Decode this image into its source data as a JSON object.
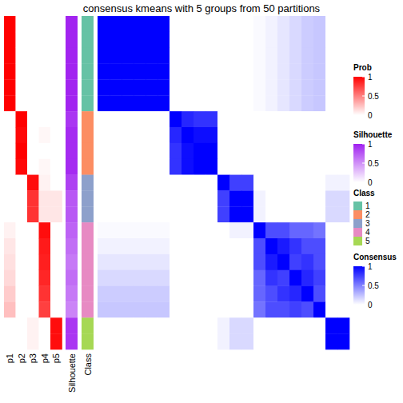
{
  "chart_data": {
    "type": "heatmap",
    "title": "consensus kmeans with 5 groups from 50 partitions",
    "consensus": [
      [
        1,
        1,
        1,
        1,
        1,
        1,
        0,
        0,
        0,
        0,
        0,
        0,
        0,
        0.02,
        0.05,
        0.1,
        0.15,
        0.2,
        0.22,
        0,
        0
      ],
      [
        1,
        1,
        1,
        1,
        1,
        1,
        0,
        0,
        0,
        0,
        0,
        0,
        0,
        0.02,
        0.05,
        0.1,
        0.15,
        0.2,
        0.22,
        0,
        0
      ],
      [
        1,
        1,
        1,
        1,
        1,
        1,
        0,
        0,
        0,
        0,
        0,
        0,
        0,
        0.02,
        0.05,
        0.1,
        0.15,
        0.2,
        0.22,
        0,
        0
      ],
      [
        1,
        1,
        1,
        1,
        1,
        1,
        0,
        0,
        0,
        0,
        0,
        0,
        0,
        0.02,
        0.05,
        0.1,
        0.15,
        0.2,
        0.22,
        0,
        0
      ],
      [
        1,
        1,
        1,
        1,
        1,
        1,
        0,
        0,
        0,
        0,
        0,
        0,
        0,
        0.02,
        0.05,
        0.1,
        0.15,
        0.2,
        0.22,
        0,
        0
      ],
      [
        1,
        1,
        1,
        1,
        1,
        1,
        0,
        0,
        0,
        0,
        0,
        0,
        0,
        0.02,
        0.05,
        0.1,
        0.15,
        0.2,
        0.22,
        0,
        0
      ],
      [
        0,
        0,
        0,
        0,
        0,
        0,
        1,
        0.85,
        0.8,
        0.8,
        0,
        0,
        0,
        0,
        0,
        0,
        0,
        0,
        0,
        0,
        0
      ],
      [
        0,
        0,
        0,
        0,
        0,
        0,
        0.85,
        1,
        0.95,
        0.95,
        0,
        0,
        0,
        0,
        0,
        0,
        0,
        0,
        0,
        0,
        0
      ],
      [
        0,
        0,
        0,
        0,
        0,
        0,
        0.8,
        0.95,
        1,
        1,
        0,
        0,
        0,
        0,
        0,
        0,
        0,
        0,
        0,
        0,
        0
      ],
      [
        0,
        0,
        0,
        0,
        0,
        0,
        0.8,
        0.95,
        1,
        1,
        0,
        0,
        0,
        0,
        0,
        0,
        0,
        0,
        0,
        0,
        0
      ],
      [
        0,
        0,
        0,
        0,
        0,
        0,
        0,
        0,
        0,
        0,
        1,
        0.75,
        0.75,
        0,
        0,
        0,
        0,
        0,
        0,
        0.05,
        0.05
      ],
      [
        0,
        0,
        0,
        0,
        0,
        0,
        0,
        0,
        0,
        0,
        0.75,
        1,
        1,
        0.05,
        0,
        0,
        0,
        0,
        0,
        0.15,
        0.15
      ],
      [
        0,
        0,
        0,
        0,
        0,
        0,
        0,
        0,
        0,
        0,
        0.75,
        1,
        1,
        0.05,
        0,
        0,
        0,
        0,
        0,
        0.15,
        0.15
      ],
      [
        0.02,
        0.02,
        0.02,
        0.02,
        0.02,
        0.02,
        0,
        0,
        0,
        0,
        0,
        0.05,
        0.05,
        1,
        0.7,
        0.7,
        0.6,
        0.6,
        0.55,
        0,
        0
      ],
      [
        0.05,
        0.05,
        0.05,
        0.05,
        0.05,
        0.05,
        0,
        0,
        0,
        0,
        0,
        0,
        0,
        0.7,
        1,
        0.9,
        0.8,
        0.7,
        0.7,
        0,
        0
      ],
      [
        0.1,
        0.1,
        0.1,
        0.1,
        0.1,
        0.1,
        0,
        0,
        0,
        0,
        0,
        0,
        0,
        0.7,
        0.9,
        1,
        0.75,
        0.8,
        0.7,
        0,
        0
      ],
      [
        0.15,
        0.15,
        0.15,
        0.15,
        0.15,
        0.15,
        0,
        0,
        0,
        0,
        0,
        0,
        0,
        0.6,
        0.8,
        0.75,
        1,
        0.85,
        0.75,
        0,
        0
      ],
      [
        0.2,
        0.2,
        0.2,
        0.2,
        0.2,
        0.2,
        0,
        0,
        0,
        0,
        0,
        0,
        0,
        0.6,
        0.7,
        0.8,
        0.85,
        1,
        0.7,
        0,
        0
      ],
      [
        0.22,
        0.22,
        0.22,
        0.22,
        0.22,
        0.22,
        0,
        0,
        0,
        0,
        0,
        0,
        0,
        0.55,
        0.7,
        0.7,
        0.75,
        0.7,
        1,
        0,
        0
      ],
      [
        0,
        0,
        0,
        0,
        0,
        0,
        0,
        0,
        0,
        0,
        0.05,
        0.15,
        0.15,
        0,
        0,
        0,
        0,
        0,
        0,
        1,
        1
      ],
      [
        0,
        0,
        0,
        0,
        0,
        0,
        0,
        0,
        0,
        0,
        0.05,
        0.15,
        0.15,
        0,
        0,
        0,
        0,
        0,
        0,
        1,
        1
      ]
    ],
    "prob": {
      "names": [
        "p1",
        "p2",
        "p3",
        "p4",
        "p5"
      ],
      "values": [
        [
          1,
          0,
          0,
          0,
          0
        ],
        [
          1,
          0,
          0,
          0,
          0
        ],
        [
          1,
          0,
          0,
          0,
          0
        ],
        [
          1,
          0,
          0,
          0,
          0
        ],
        [
          1,
          0,
          0,
          0,
          0
        ],
        [
          1,
          0,
          0,
          0,
          0
        ],
        [
          0,
          1,
          0,
          0,
          0
        ],
        [
          0,
          0.97,
          0,
          0.03,
          0
        ],
        [
          0,
          1,
          0,
          0,
          0
        ],
        [
          0,
          0.97,
          0,
          0.03,
          0
        ],
        [
          0,
          0,
          0.95,
          0.05,
          0
        ],
        [
          0,
          0,
          0.8,
          0.1,
          0.1
        ],
        [
          0,
          0,
          0.8,
          0.1,
          0.1
        ],
        [
          0.05,
          0,
          0,
          0.95,
          0
        ],
        [
          0.1,
          0,
          0,
          0.9,
          0
        ],
        [
          0.12,
          0,
          0,
          0.88,
          0
        ],
        [
          0.15,
          0,
          0,
          0.85,
          0
        ],
        [
          0.2,
          0,
          0,
          0.8,
          0
        ],
        [
          0.25,
          0,
          0,
          0.75,
          0
        ],
        [
          0,
          0,
          0.05,
          0,
          0.95
        ],
        [
          0,
          0,
          0.05,
          0,
          0.95
        ]
      ]
    },
    "silhouette": [
      0.98,
      0.98,
      0.98,
      0.98,
      0.98,
      0.98,
      0.9,
      0.95,
      0.95,
      0.95,
      0.85,
      0.75,
      0.75,
      0.7,
      0.65,
      0.6,
      0.65,
      0.6,
      0.55,
      0.9,
      0.9
    ],
    "class": [
      1,
      1,
      1,
      1,
      1,
      1,
      2,
      2,
      2,
      2,
      3,
      3,
      3,
      4,
      4,
      4,
      4,
      4,
      4,
      5,
      5
    ],
    "silhouette_label": "Silhouette",
    "class_label": "Class",
    "prob_scale": {
      "title": "Prob",
      "range": [
        0,
        1
      ],
      "ticks": [
        0,
        0.5,
        1
      ],
      "colors": [
        "#FFFFFF",
        "#FF0000"
      ]
    },
    "silhouette_scale": {
      "title": "Silhouette",
      "range": [
        0,
        1
      ],
      "ticks": [
        0,
        0.5,
        1
      ],
      "colors": [
        "#FFFFFF",
        "#A020F0"
      ]
    },
    "class_legend": {
      "title": "Class",
      "categories": [
        1,
        2,
        3,
        4,
        5
      ],
      "colors": [
        "#66C2A5",
        "#FC8D62",
        "#8DA0CB",
        "#E78AC3",
        "#A6D854"
      ]
    },
    "consensus_scale": {
      "title": "Consensus",
      "range": [
        0,
        1
      ],
      "ticks": [
        0,
        0.5,
        1
      ],
      "colors": [
        "#FFFFFF",
        "#0000FF"
      ]
    }
  }
}
